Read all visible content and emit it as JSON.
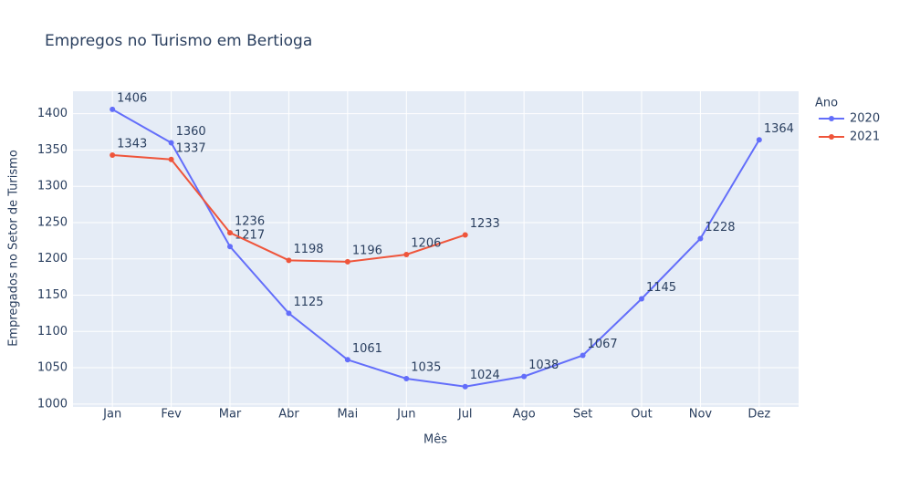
{
  "chart_data": {
    "type": "line",
    "title": "Empregos no Turismo em Bertioga",
    "x_label": "Mês",
    "y_label": "Empregados no Setor de Turismo",
    "legend_title": "Ano",
    "categories": [
      "Jan",
      "Fev",
      "Mar",
      "Abr",
      "Mai",
      "Jun",
      "Jul",
      "Ago",
      "Set",
      "Out",
      "Nov",
      "Dez"
    ],
    "series": [
      {
        "name": "2020",
        "color": "#636efa",
        "values": [
          1406,
          1360,
          1217,
          1125,
          1061,
          1035,
          1024,
          1038,
          1067,
          1145,
          1228,
          1364
        ]
      },
      {
        "name": "2021",
        "color": "#EF553B",
        "values": [
          1343,
          1337,
          1236,
          1198,
          1196,
          1206,
          1233,
          null,
          null,
          null,
          null,
          null
        ]
      }
    ],
    "ylim": [
      996,
      1431
    ],
    "yticks": [
      1000,
      1050,
      1100,
      1150,
      1200,
      1250,
      1300,
      1350,
      1400
    ],
    "grid": true
  }
}
